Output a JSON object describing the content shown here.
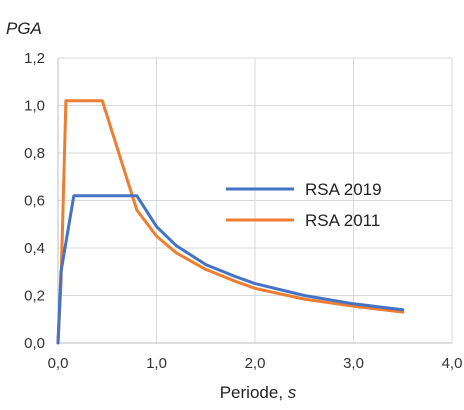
{
  "chart_data": {
    "type": "line",
    "ylabel": "PGA",
    "xlabel_main": "Periode, ",
    "xlabel_unit": "s",
    "xlim": [
      0,
      4
    ],
    "ylim": [
      0,
      1.2
    ],
    "xticks": [
      "0,0",
      "1,0",
      "2,0",
      "3,0",
      "4,0"
    ],
    "yticks": [
      "0,0",
      "0,2",
      "0,4",
      "0,6",
      "0,8",
      "1,0",
      "1,2"
    ],
    "grid": true,
    "legend_position": "center-right",
    "series": [
      {
        "name": "RSA 2019",
        "color": "#4472C4",
        "x": [
          0.0,
          0.03,
          0.16,
          0.8,
          1.0,
          1.2,
          1.5,
          1.8,
          2.0,
          2.5,
          3.0,
          3.5
        ],
        "y": [
          0.0,
          0.3,
          0.62,
          0.62,
          0.49,
          0.41,
          0.33,
          0.28,
          0.25,
          0.2,
          0.165,
          0.14
        ]
      },
      {
        "name": "RSA 2011",
        "color": "#ED7D31",
        "x": [
          0.0,
          0.03,
          0.08,
          0.45,
          0.8,
          1.0,
          1.2,
          1.5,
          1.8,
          2.0,
          2.5,
          3.0,
          3.5
        ],
        "y": [
          0.0,
          0.25,
          1.02,
          1.02,
          0.56,
          0.45,
          0.38,
          0.31,
          0.26,
          0.23,
          0.185,
          0.155,
          0.13
        ]
      }
    ]
  }
}
